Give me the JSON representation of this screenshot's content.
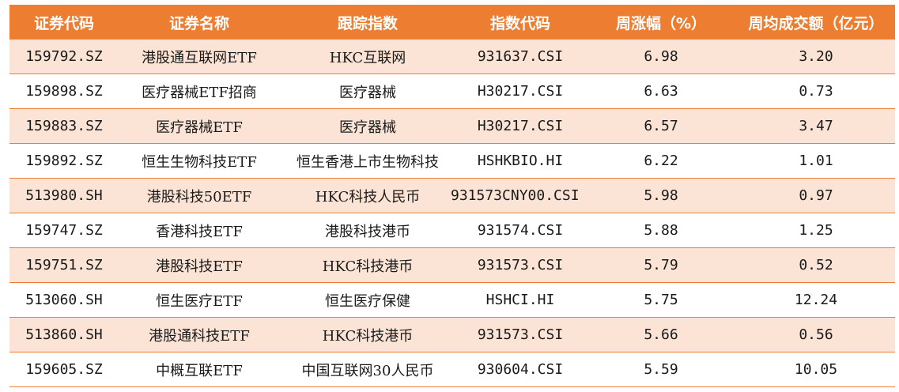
{
  "colors": {
    "header_bg": "#ed7d31",
    "header_text": "#ffffff",
    "band_row_bg": "#fbe4d5",
    "plain_row_bg": "#ffffff",
    "row_border": "#ed7d31"
  },
  "table": {
    "headers": [
      "证券代码",
      "证券名称",
      "跟踪指数",
      "指数代码",
      "周涨幅（%）",
      "周均成交额（亿元）"
    ],
    "rows": [
      [
        "159792.SZ",
        "港股通互联网ETF",
        "HKC互联网",
        "931637.CSI",
        "6.98",
        "3.20"
      ],
      [
        "159898.SZ",
        "医疗器械ETF招商",
        "医疗器械",
        "H30217.CSI",
        "6.63",
        "0.73"
      ],
      [
        "159883.SZ",
        "医疗器械ETF",
        "医疗器械",
        "H30217.CSI",
        "6.57",
        "3.47"
      ],
      [
        "159892.SZ",
        "恒生生物科技ETF",
        "恒生香港上市生物科技",
        "HSHKBIO.HI",
        "6.22",
        "1.01"
      ],
      [
        "513980.SH",
        "港股科技50ETF",
        "HKC科技人民币",
        "931573CNY00.CSI",
        "5.98",
        "0.97"
      ],
      [
        "159747.SZ",
        "香港科技ETF",
        "港股科技港币",
        "931574.CSI",
        "5.88",
        "1.25"
      ],
      [
        "159751.SZ",
        "港股科技ETF",
        "HKC科技港币",
        "931573.CSI",
        "5.79",
        "0.52"
      ],
      [
        "513060.SH",
        "恒生医疗ETF",
        "恒生医疗保健",
        "HSHCI.HI",
        "5.75",
        "12.24"
      ],
      [
        "513860.SH",
        "港股通科技ETF",
        "HKC科技港币",
        "931573.CSI",
        "5.66",
        "0.56"
      ],
      [
        "159605.SZ",
        "中概互联ETF",
        "中国互联网30人民币",
        "930604.CSI",
        "5.59",
        "10.05"
      ]
    ]
  }
}
